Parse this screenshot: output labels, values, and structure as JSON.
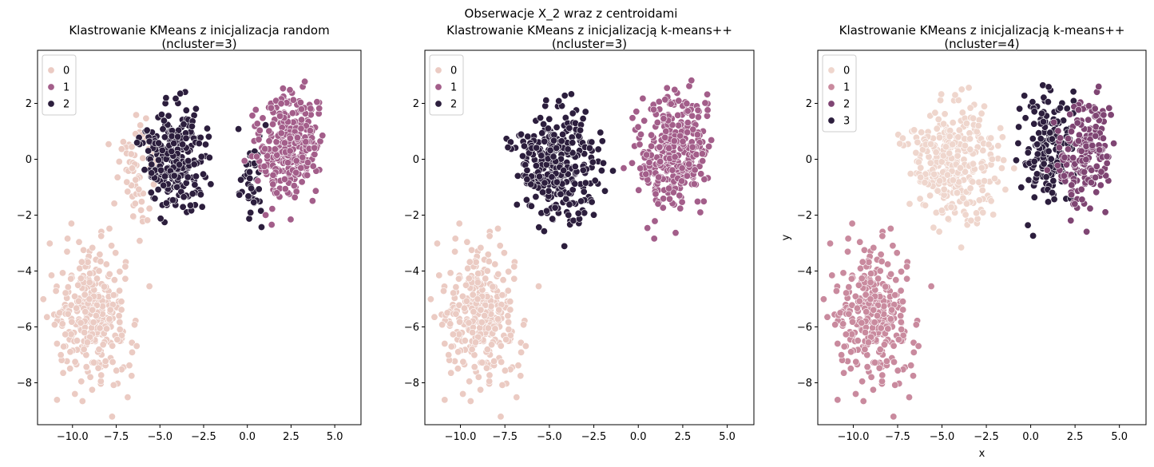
{
  "figure": {
    "suptitle": "Obserwacje X_2 wraz z centroidami"
  },
  "chart_data": [
    {
      "type": "scatter",
      "title_line1": "Klastrowanie KMeans z inicjalizacja random",
      "title_line2": "(ncluster=3)",
      "xlabel": "",
      "ylabel": "",
      "xlim": [
        -12.0,
        6.5
      ],
      "ylim": [
        -9.5,
        3.9
      ],
      "xticks": [
        -10.0,
        -7.5,
        -5.0,
        -2.5,
        0.0,
        2.5,
        5.0
      ],
      "xtick_labels": [
        "−10.0",
        "−7.5",
        "−5.0",
        "−2.5",
        "0.0",
        "2.5",
        "5.0"
      ],
      "yticks": [
        2,
        0,
        -2,
        -4,
        -6,
        -8
      ],
      "ytick_labels": [
        "2",
        "0",
        "−2",
        "−4",
        "−6",
        "−8"
      ],
      "legend_position": "top-left",
      "legend": [
        {
          "label": "0",
          "color": "#ebcbc3"
        },
        {
          "label": "1",
          "color": "#a35e8a"
        },
        {
          "label": "2",
          "color": "#2c1e3d"
        }
      ],
      "blobs": [
        {
          "cluster": 0,
          "center": [
            -8.9,
            -5.6
          ],
          "spread": [
            1.1,
            1.2
          ],
          "count": 320
        },
        {
          "cluster": 0,
          "center": [
            -6.4,
            -0.3
          ],
          "spread": [
            0.6,
            0.9
          ],
          "count": 70
        },
        {
          "cluster": 2,
          "center": [
            -4.2,
            0.0
          ],
          "spread": [
            0.85,
            0.95
          ],
          "count": 260
        },
        {
          "cluster": 2,
          "center": [
            0.2,
            -0.7
          ],
          "spread": [
            0.45,
            1.0
          ],
          "count": 40
        },
        {
          "cluster": 1,
          "center": [
            2.3,
            0.5
          ],
          "spread": [
            0.95,
            0.95
          ],
          "count": 300
        }
      ]
    },
    {
      "type": "scatter",
      "title_line1": "Klastrowanie KMeans z inicjalizacją k-means++",
      "title_line2": "(ncluster=3)",
      "xlabel": "",
      "ylabel": "",
      "xlim": [
        -12.0,
        6.5
      ],
      "ylim": [
        -9.5,
        3.9
      ],
      "xticks": [
        -10.0,
        -7.5,
        -5.0,
        -2.5,
        0.0,
        2.5,
        5.0
      ],
      "xtick_labels": [
        "−10.0",
        "−7.5",
        "−5.0",
        "−2.5",
        "0.0",
        "2.5",
        "5.0"
      ],
      "yticks": [
        2,
        0,
        -2,
        -4,
        -6,
        -8
      ],
      "ytick_labels": [
        "2",
        "0",
        "−2",
        "−4",
        "−6",
        "−8"
      ],
      "legend_position": "top-left",
      "legend": [
        {
          "label": "0",
          "color": "#ebcbc3"
        },
        {
          "label": "1",
          "color": "#a35e8a"
        },
        {
          "label": "2",
          "color": "#2c1e3d"
        }
      ],
      "blobs": [
        {
          "cluster": 0,
          "center": [
            -8.9,
            -5.6
          ],
          "spread": [
            1.1,
            1.2
          ],
          "count": 320
        },
        {
          "cluster": 2,
          "center": [
            -4.6,
            -0.2
          ],
          "spread": [
            1.1,
            1.0
          ],
          "count": 330
        },
        {
          "cluster": 1,
          "center": [
            1.9,
            0.3
          ],
          "spread": [
            1.05,
            1.05
          ],
          "count": 330
        }
      ]
    },
    {
      "type": "scatter",
      "title_line1": "Klastrowanie KMeans z inicjalizacją k-means++",
      "title_line2": "(ncluster=4)",
      "xlabel": "x",
      "ylabel": "y",
      "xlim": [
        -12.0,
        6.5
      ],
      "ylim": [
        -9.5,
        3.9
      ],
      "xticks": [
        -10.0,
        -7.5,
        -5.0,
        -2.5,
        0.0,
        2.5,
        5.0
      ],
      "xtick_labels": [
        "−10.0",
        "−7.5",
        "−5.0",
        "−2.5",
        "0.0",
        "2.5",
        "5.0"
      ],
      "yticks": [
        2,
        0,
        -2,
        -4,
        -6,
        -8
      ],
      "ytick_labels": [
        "2",
        "0",
        "−2",
        "−4",
        "−6",
        "−8"
      ],
      "legend_position": "top-left",
      "legend": [
        {
          "label": "0",
          "color": "#efd6cd"
        },
        {
          "label": "1",
          "color": "#c98a9e"
        },
        {
          "label": "2",
          "color": "#7f4573"
        },
        {
          "label": "3",
          "color": "#2c1e3d"
        }
      ],
      "blobs": [
        {
          "cluster": 1,
          "center": [
            -8.9,
            -5.6
          ],
          "spread": [
            1.1,
            1.2
          ],
          "count": 320
        },
        {
          "cluster": 0,
          "center": [
            -4.4,
            -0.1
          ],
          "spread": [
            1.2,
            1.05
          ],
          "count": 330
        },
        {
          "cluster": 3,
          "center": [
            0.9,
            0.4
          ],
          "spread": [
            0.8,
            1.05
          ],
          "count": 170
        },
        {
          "cluster": 2,
          "center": [
            3.0,
            0.2
          ],
          "spread": [
            0.8,
            1.0
          ],
          "count": 170
        }
      ]
    }
  ]
}
